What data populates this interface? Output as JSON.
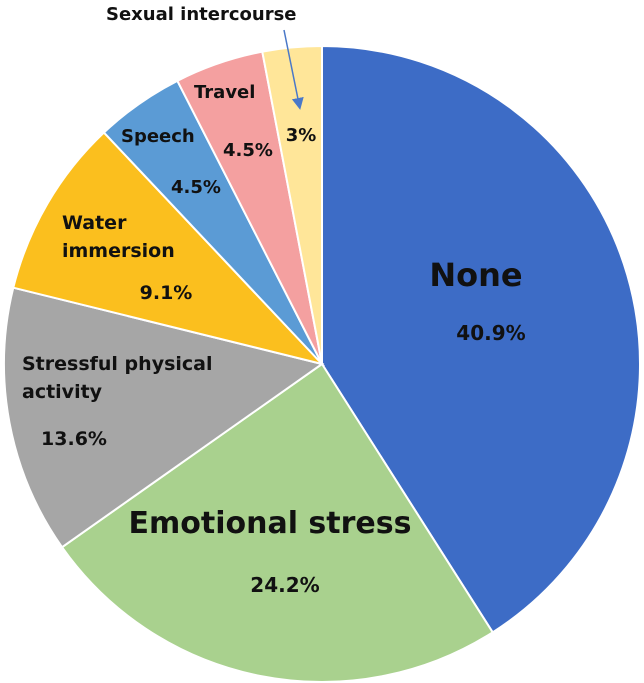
{
  "chart_data": {
    "type": "pie",
    "title": "",
    "slices": [
      {
        "label": "None",
        "value": 40.9,
        "value_label": "40.9%",
        "color": "#3d6cc6"
      },
      {
        "label": "Emotional stress",
        "value": 24.2,
        "value_label": "24.2%",
        "color": "#a9d18e"
      },
      {
        "label": "Stressful physical activity",
        "value": 13.6,
        "value_label": "13.6%",
        "color": "#a6a6a6"
      },
      {
        "label": "Water immersion",
        "value": 9.1,
        "value_label": "9.1%",
        "color": "#fbbf1e"
      },
      {
        "label": "Speech",
        "value": 4.5,
        "value_label": "4.5%",
        "color": "#5b9bd5"
      },
      {
        "label": "Travel",
        "value": 4.5,
        "value_label": "4.5%",
        "color": "#f4a0a0"
      },
      {
        "label": "Sexual intercourse",
        "value": 3,
        "value_label": "3%",
        "color": "#ffe699"
      }
    ],
    "start_angle": "12 o'clock",
    "direction": "clockwise",
    "legend": "none",
    "callout_slice": "Sexual intercourse"
  }
}
